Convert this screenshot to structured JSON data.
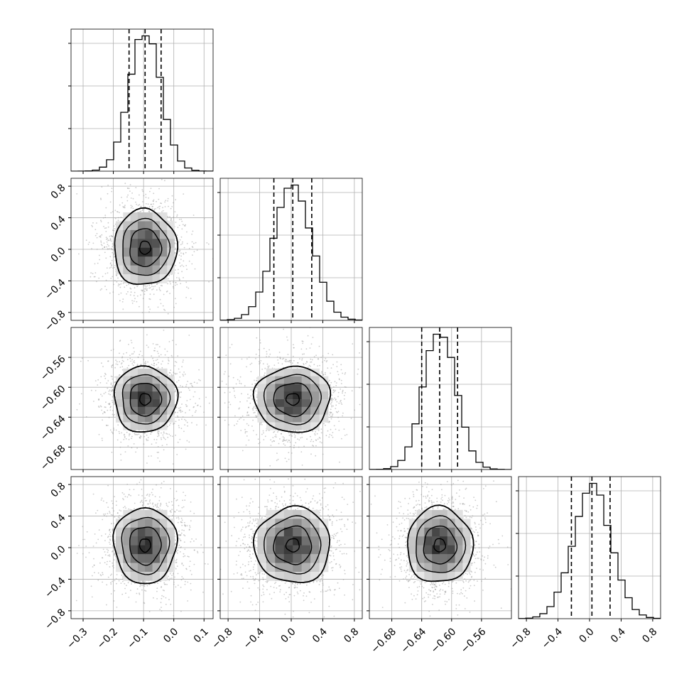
{
  "chart_data": {
    "type": "corner",
    "n_params": 4,
    "grid": true,
    "quantiles": [
      0.16,
      0.5,
      0.84
    ],
    "params": [
      {
        "mean": -0.095,
        "std": 0.052,
        "range": [
          -0.34,
          0.13
        ],
        "x_ticks": [
          "−0.3",
          "−0.2",
          "−0.1",
          "0.0",
          "0.1"
        ],
        "x_tick_values": [
          -0.3,
          -0.2,
          -0.1,
          0.0,
          0.1
        ],
        "quantile_values": [
          -0.148,
          -0.095,
          -0.042
        ]
      },
      {
        "mean": 0.02,
        "std": 0.24,
        "range": [
          -0.9,
          0.9
        ],
        "x_ticks": [
          "−0.8",
          "−0.4",
          "0.0",
          "0.4",
          "0.8"
        ],
        "x_tick_values": [
          -0.8,
          -0.4,
          0.0,
          0.4,
          0.8
        ],
        "y_ticks": [
          "−0.8",
          "−0.4",
          "0.0",
          "0.4",
          "0.8"
        ],
        "y_tick_values": [
          -0.8,
          -0.4,
          0.0,
          0.4,
          0.8
        ],
        "quantile_values": [
          -0.22,
          0.02,
          0.26
        ]
      },
      {
        "mean": -0.616,
        "std": 0.022,
        "range": [
          -0.71,
          -0.52
        ],
        "x_ticks": [
          "−0.68",
          "−0.64",
          "−0.60",
          "−0.56"
        ],
        "x_tick_values": [
          -0.68,
          -0.64,
          -0.6,
          -0.56
        ],
        "y_ticks": [
          "−0.56",
          "−0.60",
          "−0.64",
          "−0.68"
        ],
        "y_tick_values": [
          -0.56,
          -0.6,
          -0.64,
          -0.68
        ],
        "quantile_values": [
          -0.64,
          -0.616,
          -0.592
        ]
      },
      {
        "mean": 0.03,
        "std": 0.24,
        "range": [
          -0.9,
          0.9
        ],
        "x_ticks": [
          "−0.8",
          "−0.4",
          "0.0",
          "0.4",
          "0.8"
        ],
        "x_tick_values": [
          -0.8,
          -0.4,
          0.0,
          0.4,
          0.8
        ],
        "y_ticks": [
          "−0.8",
          "−0.4",
          "0.0",
          "0.4",
          "0.8"
        ],
        "y_tick_values": [
          -0.8,
          -0.4,
          0.0,
          0.4,
          0.8
        ],
        "quantile_values": [
          -0.23,
          0.03,
          0.26
        ]
      }
    ],
    "hist_bins": 20,
    "contour_levels_sigma": [
      0.5,
      1.0,
      1.5,
      2.0
    ],
    "colors": {
      "line": "#000000",
      "grid": "#b0b0b0",
      "scatter": "#9a9a9a",
      "axis": "#000000"
    }
  }
}
